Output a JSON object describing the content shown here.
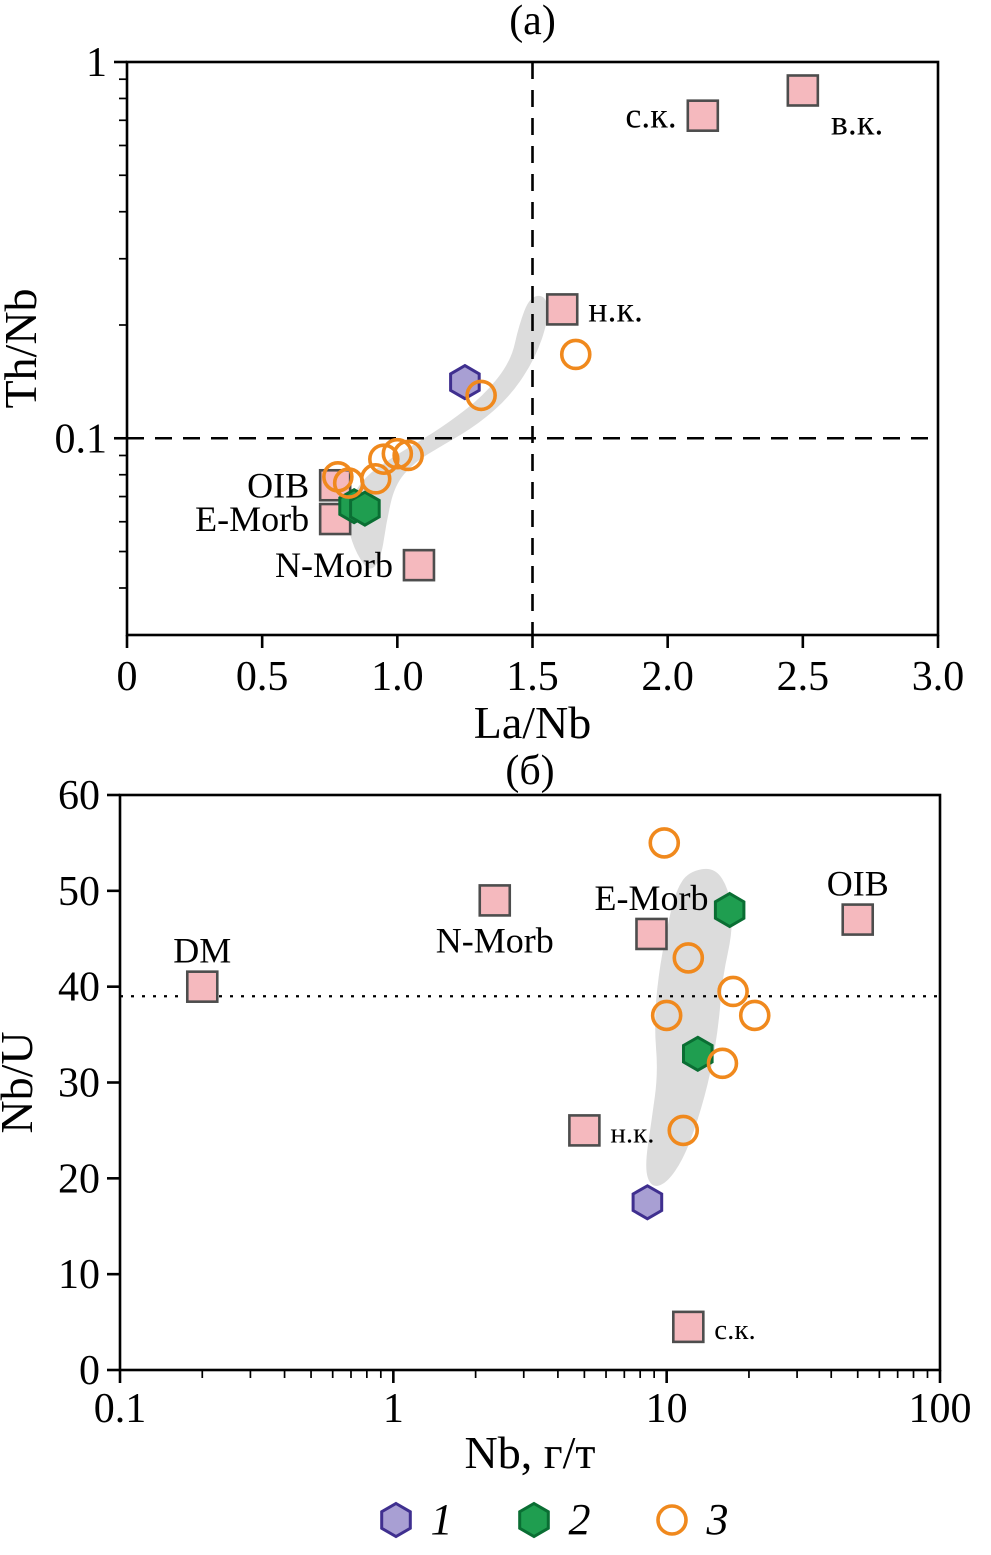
{
  "colors": {
    "square_fill": "#f5b9be",
    "square_stroke": "#4d4d4d",
    "hex1_fill": "#a89fd3",
    "hex1_stroke": "#3f2f8f",
    "hex2_fill": "#1f9e50",
    "hex2_stroke": "#0a6e33",
    "circle_stroke": "#f0891d",
    "field_fill": "#dcdcdc",
    "axis": "#000000"
  },
  "legend": {
    "items": [
      {
        "marker": "hexagon1",
        "label": "1"
      },
      {
        "marker": "hexagon2",
        "label": "2"
      },
      {
        "marker": "circle",
        "label": "3"
      }
    ]
  },
  "chart_data": [
    {
      "type": "scatter",
      "title": "(а)",
      "xlabel": "La/Nb",
      "ylabel": "Th/Nb",
      "xscale": "linear",
      "yscale": "log",
      "xlim": [
        0,
        3.0
      ],
      "ylim": [
        0.03,
        1.0
      ],
      "xticks": [
        0,
        0.5,
        1.0,
        1.5,
        2.0,
        2.5,
        3.0
      ],
      "xtick_labels": [
        "0",
        "0.5",
        "1.0",
        "1.5",
        "2.0",
        "2.5",
        "3.0"
      ],
      "yticks": [
        0.1,
        1
      ],
      "ytick_labels": [
        "0.1",
        "1"
      ],
      "x_minor_ticks": false,
      "y_minor_ticks": true,
      "grid": false,
      "legend_position": "none",
      "ref_lines": [
        {
          "axis": "y",
          "value": 0.1,
          "style": "dashed"
        },
        {
          "axis": "x",
          "value": 1.5,
          "style": "dashed"
        }
      ],
      "field_outline": [
        [
          0.9,
          0.044
        ],
        [
          0.85,
          0.049
        ],
        [
          0.815,
          0.058
        ],
        [
          0.82,
          0.068
        ],
        [
          0.88,
          0.079
        ],
        [
          0.97,
          0.088
        ],
        [
          1.07,
          0.097
        ],
        [
          1.19,
          0.11
        ],
        [
          1.32,
          0.13
        ],
        [
          1.42,
          0.16
        ],
        [
          1.45,
          0.2
        ],
        [
          1.49,
          0.238
        ],
        [
          1.55,
          0.24
        ],
        [
          1.56,
          0.208
        ],
        [
          1.51,
          0.163
        ],
        [
          1.42,
          0.13
        ],
        [
          1.3,
          0.109
        ],
        [
          1.17,
          0.096
        ],
        [
          1.06,
          0.086
        ],
        [
          0.99,
          0.075
        ],
        [
          0.96,
          0.06
        ],
        [
          0.94,
          0.048
        ]
      ],
      "series": [
        {
          "name": "reference points",
          "marker": "square",
          "points": [
            {
              "x": 2.13,
              "y": 0.72,
              "label": "с.к.",
              "label_pos": "left"
            },
            {
              "x": 2.5,
              "y": 0.84,
              "label": "в.к.",
              "label_pos": "below-right"
            },
            {
              "x": 1.61,
              "y": 0.22,
              "label": "н.к.",
              "label_pos": "right"
            },
            {
              "x": 0.77,
              "y": 0.075,
              "label": "OIB",
              "label_pos": "left"
            },
            {
              "x": 0.77,
              "y": 0.061,
              "label": "E-Morb",
              "label_pos": "left"
            },
            {
              "x": 1.08,
              "y": 0.046,
              "label": "N-Morb",
              "label_pos": "left"
            }
          ]
        },
        {
          "name": "group 1",
          "marker": "hexagon1",
          "points": [
            {
              "x": 1.25,
              "y": 0.141
            }
          ]
        },
        {
          "name": "group 2",
          "marker": "hexagon2",
          "points": [
            {
              "x": 0.84,
              "y": 0.066
            },
            {
              "x": 0.88,
              "y": 0.065
            }
          ]
        },
        {
          "name": "group 3",
          "marker": "circle",
          "points": [
            {
              "x": 0.78,
              "y": 0.079
            },
            {
              "x": 0.82,
              "y": 0.076
            },
            {
              "x": 0.92,
              "y": 0.078
            },
            {
              "x": 0.95,
              "y": 0.088
            },
            {
              "x": 1.0,
              "y": 0.091
            },
            {
              "x": 1.04,
              "y": 0.09
            },
            {
              "x": 1.31,
              "y": 0.13
            },
            {
              "x": 1.66,
              "y": 0.167
            }
          ]
        }
      ]
    },
    {
      "type": "scatter",
      "title": "(б)",
      "xlabel": "Nb, г/т",
      "ylabel": "Nb/U",
      "xscale": "log",
      "yscale": "linear",
      "xlim": [
        0.1,
        100
      ],
      "ylim": [
        0,
        60
      ],
      "xticks": [
        0.1,
        1,
        10,
        100
      ],
      "xtick_labels": [
        "0.1",
        "1",
        "10",
        "100"
      ],
      "yticks": [
        0,
        10,
        20,
        30,
        40,
        50,
        60
      ],
      "ytick_labels": [
        "0",
        "10",
        "20",
        "30",
        "40",
        "50",
        "60"
      ],
      "x_minor_ticks": true,
      "y_minor_ticks": false,
      "grid": false,
      "legend_position": "none",
      "ref_lines": [
        {
          "axis": "y",
          "value": 39,
          "style": "dotted"
        }
      ],
      "field_outline": [
        [
          12,
          52
        ],
        [
          15,
          52.5
        ],
        [
          17,
          50
        ],
        [
          17.5,
          46
        ],
        [
          16,
          41
        ],
        [
          15.5,
          36
        ],
        [
          14.5,
          31
        ],
        [
          13,
          26
        ],
        [
          11.5,
          22
        ],
        [
          10,
          19.5
        ],
        [
          8.8,
          19
        ],
        [
          8.3,
          21
        ],
        [
          8.8,
          26
        ],
        [
          9.3,
          31
        ],
        [
          9.0,
          36
        ],
        [
          9.3,
          41
        ],
        [
          10,
          46
        ],
        [
          10.8,
          50
        ]
      ],
      "series": [
        {
          "name": "reference points",
          "marker": "square",
          "points": [
            {
              "x": 0.2,
              "y": 40,
              "label": "DM",
              "label_pos": "above"
            },
            {
              "x": 2.35,
              "y": 49,
              "label": "N-Morb",
              "label_pos": "below"
            },
            {
              "x": 8.8,
              "y": 45.5,
              "label": "E-Morb",
              "label_pos": "above"
            },
            {
              "x": 50,
              "y": 47,
              "label": "OIB",
              "label_pos": "above"
            },
            {
              "x": 5,
              "y": 25,
              "label": "н.к.",
              "label_pos": "right",
              "small": true
            },
            {
              "x": 12,
              "y": 4.5,
              "label": "с.к.",
              "label_pos": "right",
              "small": true
            }
          ]
        },
        {
          "name": "group 1",
          "marker": "hexagon1",
          "points": [
            {
              "x": 8.5,
              "y": 17.5
            }
          ]
        },
        {
          "name": "group 2",
          "marker": "hexagon2",
          "points": [
            {
              "x": 17,
              "y": 48
            },
            {
              "x": 13,
              "y": 33
            }
          ]
        },
        {
          "name": "group 3",
          "marker": "circle",
          "points": [
            {
              "x": 9.8,
              "y": 55
            },
            {
              "x": 12,
              "y": 43
            },
            {
              "x": 17.5,
              "y": 39.5
            },
            {
              "x": 21,
              "y": 37
            },
            {
              "x": 10,
              "y": 37
            },
            {
              "x": 16,
              "y": 32
            },
            {
              "x": 11.5,
              "y": 25
            }
          ]
        }
      ]
    }
  ]
}
